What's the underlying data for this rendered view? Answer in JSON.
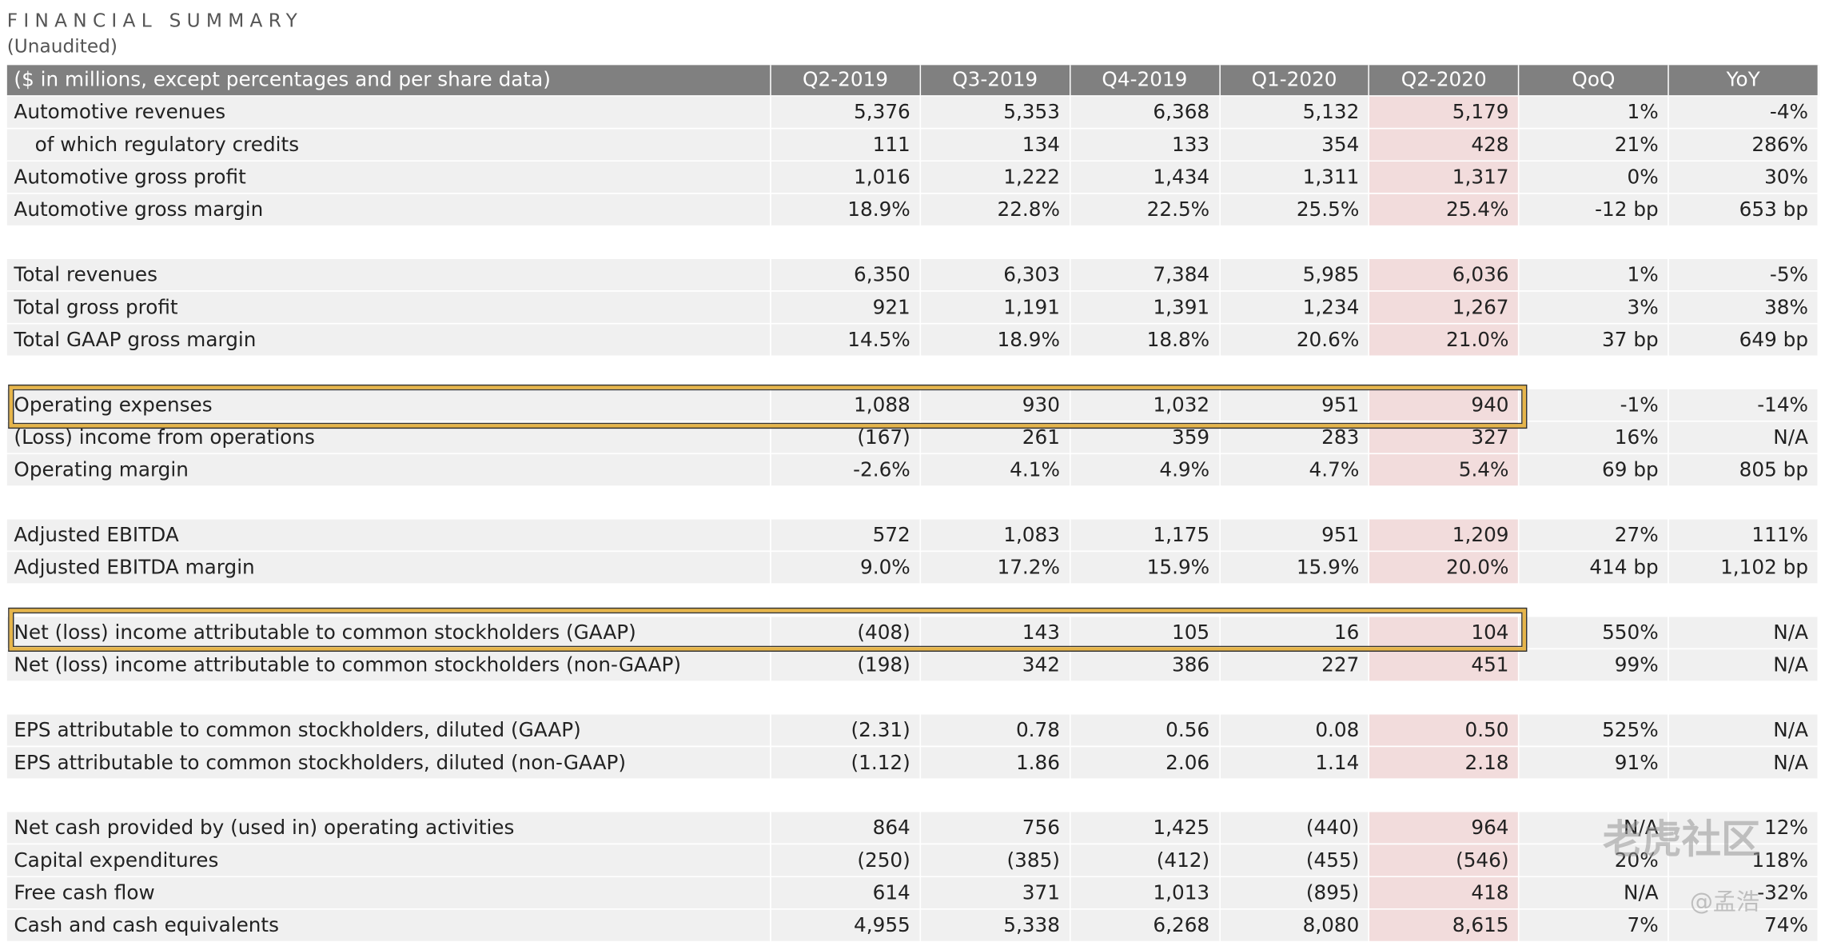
{
  "header": {
    "title": "FINANCIAL SUMMARY",
    "subtitle": "(Unaudited)"
  },
  "table": {
    "columns": [
      "($ in millions, except percentages and per share data)",
      "Q2-2019",
      "Q3-2019",
      "Q4-2019",
      "Q1-2020",
      "Q2-2020",
      "QoQ",
      "YoY"
    ],
    "groups": [
      [
        [
          "Automotive revenues",
          "5,376",
          "5,353",
          "6,368",
          "5,132",
          "5,179",
          "1%",
          "-4%"
        ],
        [
          "of which regulatory credits",
          "111",
          "134",
          "133",
          "354",
          "428",
          "21%",
          "286%"
        ],
        [
          "Automotive gross profit",
          "1,016",
          "1,222",
          "1,434",
          "1,311",
          "1,317",
          "0%",
          "30%"
        ],
        [
          "Automotive gross margin",
          "18.9%",
          "22.8%",
          "22.5%",
          "25.5%",
          "25.4%",
          "-12 bp",
          "653 bp"
        ]
      ],
      [
        [
          "Total revenues",
          "6,350",
          "6,303",
          "7,384",
          "5,985",
          "6,036",
          "1%",
          "-5%"
        ],
        [
          "Total gross profit",
          "921",
          "1,191",
          "1,391",
          "1,234",
          "1,267",
          "3%",
          "38%"
        ],
        [
          "Total GAAP gross margin",
          "14.5%",
          "18.9%",
          "18.8%",
          "20.6%",
          "21.0%",
          "37 bp",
          "649 bp"
        ]
      ],
      [
        [
          "Operating expenses",
          "1,088",
          "930",
          "1,032",
          "951",
          "940",
          "-1%",
          "-14%"
        ],
        [
          "(Loss) income from operations",
          "(167)",
          "261",
          "359",
          "283",
          "327",
          "16%",
          "N/A"
        ],
        [
          "Operating margin",
          "-2.6%",
          "4.1%",
          "4.9%",
          "4.7%",
          "5.4%",
          "69 bp",
          "805 bp"
        ]
      ],
      [
        [
          "Adjusted EBITDA",
          "572",
          "1,083",
          "1,175",
          "951",
          "1,209",
          "27%",
          "111%"
        ],
        [
          "Adjusted EBITDA margin",
          "9.0%",
          "17.2%",
          "15.9%",
          "15.9%",
          "20.0%",
          "414 bp",
          "1,102 bp"
        ]
      ],
      [
        [
          "Net (loss) income attributable to common stockholders (GAAP)",
          "(408)",
          "143",
          "105",
          "16",
          "104",
          "550%",
          "N/A"
        ],
        [
          "Net (loss) income attributable to common stockholders (non-GAAP)",
          "(198)",
          "342",
          "386",
          "227",
          "451",
          "99%",
          "N/A"
        ]
      ],
      [
        [
          "EPS attributable to common stockholders, diluted (GAAP)",
          "(2.31)",
          "0.78",
          "0.56",
          "0.08",
          "0.50",
          "525%",
          "N/A"
        ],
        [
          "EPS attributable to common stockholders, diluted (non-GAAP)",
          "(1.12)",
          "1.86",
          "2.06",
          "1.14",
          "2.18",
          "91%",
          "N/A"
        ]
      ],
      [
        [
          "Net cash provided by (used in) operating activities",
          "864",
          "756",
          "1,425",
          "(440)",
          "964",
          "N/A",
          "12%"
        ],
        [
          "Capital expenditures",
          "(250)",
          "(385)",
          "(412)",
          "(455)",
          "(546)",
          "20%",
          "118%"
        ],
        [
          "Free cash flow",
          "614",
          "371",
          "1,013",
          "(895)",
          "418",
          "N/A",
          "-32%"
        ],
        [
          "Cash and cash equivalents",
          "4,955",
          "5,338",
          "6,268",
          "8,080",
          "8,615",
          "7%",
          "74%"
        ]
      ]
    ]
  },
  "watermark": {
    "brand": "老虎社区",
    "handle": "@孟浩"
  }
}
